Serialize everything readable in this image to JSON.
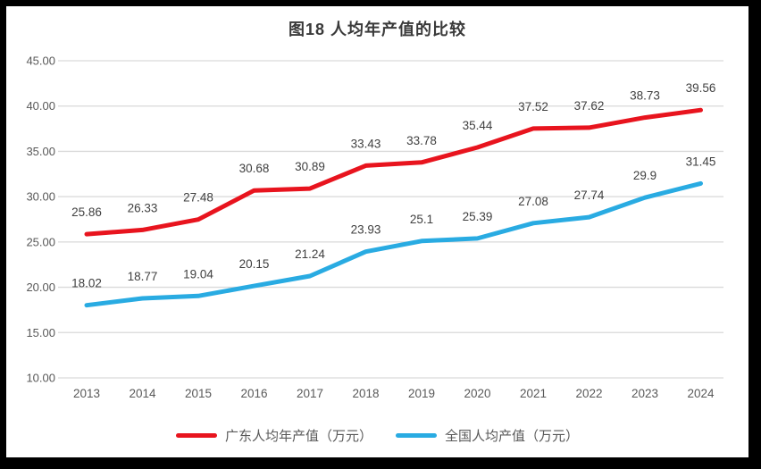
{
  "window": {
    "frame_color": "#000000",
    "panel_color": "#ffffff"
  },
  "chart_data": {
    "type": "line",
    "title": "图18 人均年产值的比较",
    "categories": [
      "2013",
      "2014",
      "2015",
      "2016",
      "2017",
      "2018",
      "2019",
      "2020",
      "2021",
      "2022",
      "2023",
      "2024"
    ],
    "ylim": [
      10,
      45
    ],
    "ytick_labels": [
      "45.00",
      "40.00",
      "35.00",
      "30.00",
      "25.00",
      "20.00",
      "15.00",
      "10.00"
    ],
    "grid": true,
    "legend_position": "bottom",
    "series": [
      {
        "name": "广东人均年产值（万元）",
        "color": "#e8141e",
        "values": [
          25.86,
          26.33,
          27.48,
          30.68,
          30.89,
          33.43,
          33.78,
          35.44,
          37.52,
          37.62,
          38.73,
          39.56
        ],
        "labels": [
          "25.86",
          "26.33",
          "27.48",
          "30.68",
          "30.89",
          "33.43",
          "33.78",
          "35.44",
          "37.52",
          "37.62",
          "38.73",
          "39.56"
        ]
      },
      {
        "name": "全国人均产值（万元）",
        "color": "#29abe2",
        "values": [
          18.02,
          18.77,
          19.04,
          20.15,
          21.24,
          23.93,
          25.1,
          25.39,
          27.08,
          27.74,
          29.9,
          31.45
        ],
        "labels": [
          "18.02",
          "18.77",
          "19.04",
          "20.15",
          "21.24",
          "23.93",
          "25.1",
          "25.39",
          "27.08",
          "27.74",
          "29.9",
          "31.45"
        ]
      }
    ],
    "colors": {
      "gridline": "#d9d9d9",
      "tick_text": "#595959",
      "data_label_text": "#404040",
      "title_text": "#3a3a3a"
    }
  }
}
